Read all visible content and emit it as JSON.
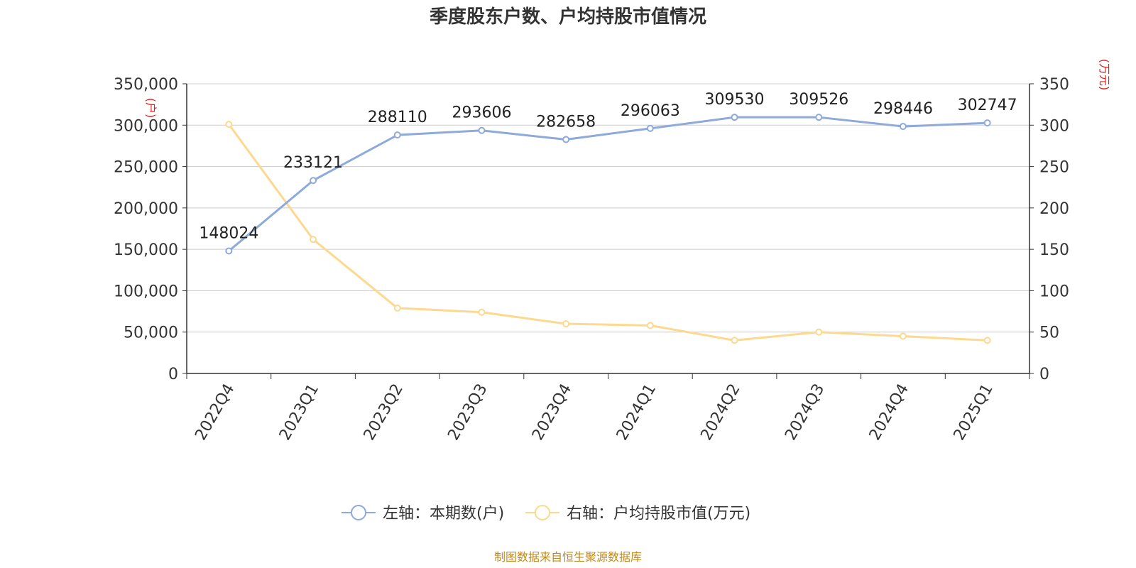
{
  "chart_data": {
    "type": "line",
    "title": "季度股东户数、户均持股市值情况",
    "categories": [
      "2022Q4",
      "2023Q1",
      "2023Q2",
      "2023Q3",
      "2023Q4",
      "2024Q1",
      "2024Q2",
      "2024Q3",
      "2024Q4",
      "2025Q1"
    ],
    "y_left": {
      "unit_label": "(户)",
      "range": [
        0,
        350000
      ],
      "ticks": [
        0,
        50000,
        100000,
        150000,
        200000,
        250000,
        300000,
        350000
      ],
      "tick_labels": [
        "0",
        "50,000",
        "100,000",
        "150,000",
        "200,000",
        "250,000",
        "300,000",
        "350,000"
      ]
    },
    "y_right": {
      "unit_label": "(万元)",
      "range": [
        0,
        350
      ],
      "ticks": [
        0,
        50,
        100,
        150,
        200,
        250,
        300,
        350
      ],
      "tick_labels": [
        "0",
        "50",
        "100",
        "150",
        "200",
        "250",
        "300",
        "350"
      ]
    },
    "series": [
      {
        "name": "左轴：本期数(户)",
        "axis": "left",
        "color": "#8eaadb",
        "values": [
          148024,
          233121,
          288110,
          293606,
          282658,
          296063,
          309530,
          309526,
          298446,
          302747
        ],
        "data_labels": [
          "148024",
          "233121",
          "288110",
          "293606",
          "282658",
          "296063",
          "309530",
          "309526",
          "298446",
          "302747"
        ]
      },
      {
        "name": "右轴：户均持股市值(万元)",
        "axis": "right",
        "color": "#fcd98e",
        "values": [
          301,
          162,
          79,
          74,
          60,
          58,
          40,
          50,
          45,
          40
        ]
      }
    ],
    "grid": true,
    "legend_position": "bottom",
    "source": "制图数据来自恒生聚源数据库"
  }
}
